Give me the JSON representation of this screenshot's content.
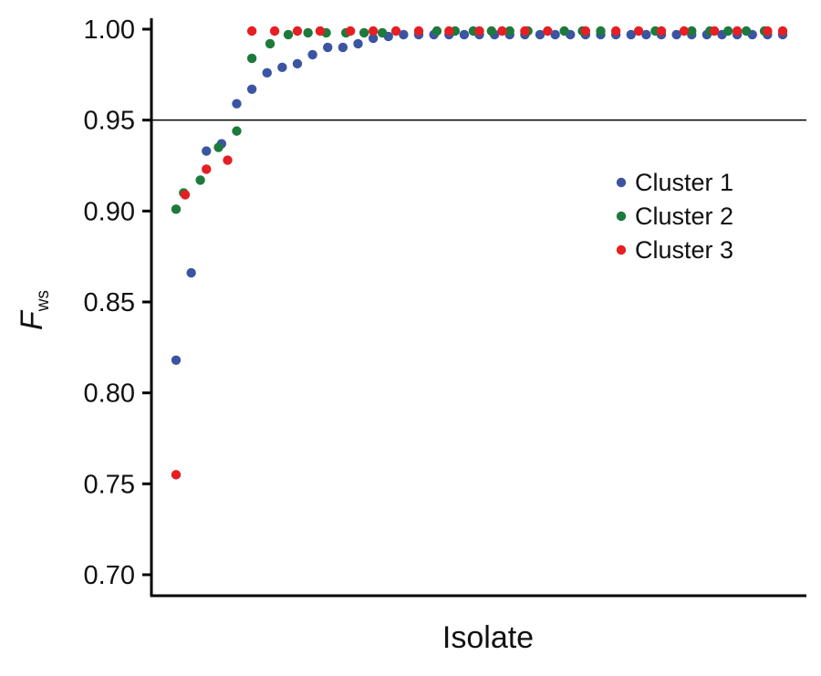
{
  "chart_data": {
    "type": "scatter",
    "title": "",
    "xlabel": "Isolate",
    "ylabel": {
      "main": "F",
      "subscript": "ws"
    },
    "ylim": [
      0.69,
      1.0
    ],
    "yticks": [
      "0.70",
      "0.75",
      "0.80",
      "0.85",
      "0.90",
      "0.95",
      "1.00"
    ],
    "xlim": [
      0,
      42
    ],
    "reference_line": 0.95,
    "grid": false,
    "legend_position": "right",
    "series": [
      {
        "name": "Cluster 1",
        "color": "#3b55a3",
        "x": [
          1,
          2,
          3,
          4,
          5,
          6,
          7,
          8,
          9,
          10,
          11,
          12,
          13,
          14,
          15,
          16,
          17,
          18,
          19,
          20,
          21,
          22,
          23,
          24,
          25,
          26,
          27,
          28,
          29,
          30,
          31,
          32,
          33,
          34,
          35,
          36,
          37,
          38,
          39,
          40,
          41
        ],
        "values": [
          0.818,
          0.866,
          0.933,
          0.937,
          0.959,
          0.967,
          0.976,
          0.979,
          0.981,
          0.986,
          0.99,
          0.99,
          0.992,
          0.995,
          0.996,
          0.997,
          0.997,
          0.997,
          0.997,
          0.997,
          0.997,
          0.997,
          0.997,
          0.997,
          0.997,
          0.997,
          0.997,
          0.997,
          0.997,
          0.997,
          0.997,
          0.997,
          0.997,
          0.997,
          0.997,
          0.997,
          0.997,
          0.997,
          0.997,
          0.997,
          0.997
        ]
      },
      {
        "name": "Cluster 2",
        "color": "#1e7a3c",
        "x": [
          1,
          1.5,
          2.6,
          3.8,
          5,
          6,
          7.2,
          8.4,
          9.7,
          10.9,
          12.2,
          13.4,
          14.6,
          18.2,
          19.4,
          20.6,
          21.8,
          23,
          24.2,
          26.6,
          27.8,
          29,
          32.6,
          35,
          36.2,
          37.4,
          38.6,
          39.8
        ],
        "values": [
          0.901,
          0.91,
          0.917,
          0.935,
          0.944,
          0.984,
          0.992,
          0.997,
          0.998,
          0.998,
          0.998,
          0.998,
          0.998,
          0.999,
          0.999,
          0.999,
          0.999,
          0.999,
          0.999,
          0.999,
          0.999,
          0.999,
          0.999,
          0.999,
          0.999,
          0.999,
          0.999,
          0.999
        ]
      },
      {
        "name": "Cluster 3",
        "color": "#e51f23",
        "x": [
          1,
          1.6,
          3,
          4.4,
          6,
          7.5,
          9,
          10.5,
          12.5,
          14,
          15.5,
          17,
          19,
          21,
          22.5,
          24,
          25.5,
          28,
          30,
          31.5,
          33,
          34.5,
          36.5,
          38,
          40,
          41
        ],
        "values": [
          0.755,
          0.909,
          0.923,
          0.928,
          0.999,
          0.999,
          0.999,
          0.999,
          0.999,
          0.999,
          0.999,
          0.999,
          0.999,
          0.999,
          0.999,
          0.999,
          0.999,
          0.999,
          0.999,
          0.999,
          0.999,
          0.999,
          0.999,
          0.999,
          0.999,
          0.999
        ]
      }
    ]
  }
}
